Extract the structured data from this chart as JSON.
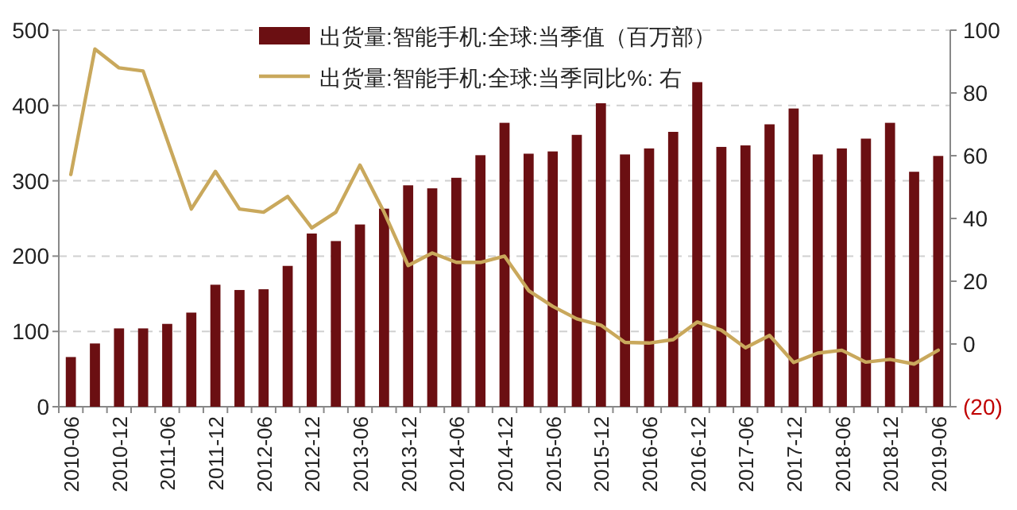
{
  "chart_data": {
    "type": "bar",
    "categories": [
      "2010-06",
      null,
      "2010-12",
      null,
      "2011-06",
      null,
      "2011-12",
      null,
      "2012-06",
      null,
      "2012-12",
      null,
      "2013-06",
      null,
      "2013-12",
      null,
      "2014-06",
      null,
      "2014-12",
      null,
      "2015-06",
      null,
      "2015-12",
      null,
      "2016-06",
      null,
      "2016-12",
      null,
      "2017-06",
      null,
      "2017-12",
      null,
      "2018-06",
      null,
      "2018-12",
      null,
      "2019-06"
    ],
    "series": [
      {
        "name": "出货量:智能手机:全球:当季值（百万部）",
        "color": "#6b0f12",
        "values": [
          66,
          84,
          104,
          104,
          110,
          125,
          162,
          155,
          156,
          187,
          230,
          220,
          242,
          263,
          294,
          290,
          304,
          334,
          377,
          336,
          339,
          361,
          403,
          335,
          343,
          365,
          431,
          345,
          347,
          375,
          396,
          335,
          343,
          356,
          377,
          312,
          333
        ]
      },
      {
        "name": "出货量:智能手机:全球:当季同比%: 右",
        "type": "line",
        "axis": "y2",
        "color": "#c9a85c",
        "values": [
          54,
          94,
          88,
          87,
          65,
          43,
          55,
          43,
          42,
          47,
          37,
          42,
          57,
          42,
          25,
          29,
          26,
          26,
          28,
          17,
          12,
          8,
          6,
          0.5,
          0.3,
          1.4,
          7,
          4.4,
          -1.2,
          2.7,
          -5.9,
          -2.9,
          -2,
          -5.8,
          -4.9,
          -6.4,
          -2
        ]
      }
    ],
    "ylim": [
      0,
      500
    ],
    "yticks": [
      0,
      100,
      200,
      300,
      400,
      500
    ],
    "y2lim": [
      -20,
      100
    ],
    "y2ticks": [
      {
        "value": -20,
        "label": "(20)"
      },
      0,
      20,
      40,
      60,
      80,
      100
    ],
    "grid": "y",
    "legend": "top"
  }
}
